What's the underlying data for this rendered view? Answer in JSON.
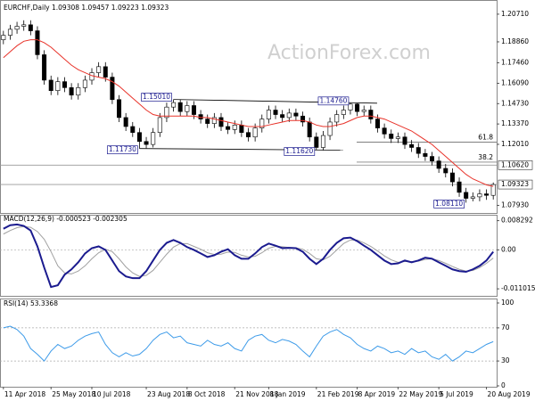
{
  "header": "EURCHF,Daily  1.09308 1.09457 1.09223 1.09323",
  "watermark": "ActionForex.com",
  "chart_data": [
    {
      "type": "candlestick",
      "categories": [
        "11 Apr 2018",
        null,
        null,
        null,
        null,
        null,
        null,
        "25 May 2018",
        null,
        null,
        null,
        null,
        null,
        "10 Jul 2018",
        null,
        null,
        null,
        null,
        null,
        null,
        null,
        "23 Aug 2018",
        null,
        null,
        null,
        null,
        null,
        "8 Oct 2018",
        null,
        null,
        null,
        null,
        null,
        null,
        "21 Nov 2018",
        null,
        null,
        null,
        null,
        "8 Jan 2019",
        null,
        null,
        null,
        null,
        null,
        null,
        "21 Feb 2019",
        null,
        null,
        null,
        null,
        null,
        "8 Apr 2019",
        null,
        null,
        null,
        null,
        null,
        "22 May 2019",
        null,
        null,
        null,
        null,
        null,
        "5 Jul 2019",
        null,
        null,
        null,
        null,
        null,
        null,
        "20 Aug 2019",
        null
      ],
      "open": [
        1.19,
        1.193,
        1.197,
        1.199,
        1.2,
        1.196,
        1.18,
        1.163,
        1.156,
        1.162,
        1.158,
        1.153,
        1.158,
        1.163,
        1.168,
        1.172,
        1.165,
        1.15,
        1.138,
        1.132,
        1.128,
        1.122,
        1.12,
        1.128,
        1.138,
        1.145,
        1.148,
        1.142,
        1.146,
        1.14,
        1.137,
        1.134,
        1.138,
        1.132,
        1.13,
        1.133,
        1.128,
        1.125,
        1.131,
        1.137,
        1.143,
        1.14,
        1.138,
        1.141,
        1.139,
        1.135,
        1.125,
        1.118,
        1.126,
        1.135,
        1.14,
        1.143,
        1.147,
        1.142,
        1.143,
        1.137,
        1.131,
        1.127,
        1.124,
        1.125,
        1.12,
        1.118,
        1.114,
        1.112,
        1.109,
        1.104,
        1.101,
        1.095,
        1.088,
        1.084,
        1.085,
        1.087,
        1.086
      ],
      "high": [
        1.196,
        1.2,
        1.202,
        1.203,
        1.203,
        1.199,
        1.183,
        1.166,
        1.165,
        1.165,
        1.161,
        1.161,
        1.166,
        1.171,
        1.175,
        1.175,
        1.168,
        1.153,
        1.141,
        1.135,
        1.131,
        1.125,
        1.131,
        1.141,
        1.148,
        1.1501,
        1.15,
        1.149,
        1.149,
        1.143,
        1.14,
        1.141,
        1.141,
        1.135,
        1.136,
        1.136,
        1.131,
        1.134,
        1.14,
        1.146,
        1.146,
        1.143,
        1.144,
        1.144,
        1.142,
        1.138,
        1.128,
        1.129,
        1.138,
        1.143,
        1.146,
        1.1476,
        1.1475,
        1.146,
        1.146,
        1.14,
        1.134,
        1.13,
        1.128,
        1.128,
        1.123,
        1.121,
        1.117,
        1.115,
        1.112,
        1.107,
        1.104,
        1.098,
        1.091,
        1.088,
        1.09,
        1.09,
        1.0946
      ],
      "low": [
        1.187,
        1.19,
        1.194,
        1.196,
        1.193,
        1.177,
        1.16,
        1.153,
        1.153,
        1.155,
        1.15,
        1.15,
        1.155,
        1.16,
        1.165,
        1.162,
        1.147,
        1.135,
        1.129,
        1.125,
        1.1173,
        1.1175,
        1.118,
        1.125,
        1.135,
        1.142,
        1.139,
        1.139,
        1.137,
        1.134,
        1.131,
        1.131,
        1.129,
        1.127,
        1.127,
        1.125,
        1.122,
        1.122,
        1.128,
        1.134,
        1.137,
        1.135,
        1.135,
        1.136,
        1.132,
        1.122,
        1.1162,
        1.116,
        1.123,
        1.132,
        1.137,
        1.14,
        1.139,
        1.139,
        1.134,
        1.128,
        1.124,
        1.121,
        1.121,
        1.117,
        1.115,
        1.111,
        1.109,
        1.106,
        1.101,
        1.098,
        1.092,
        1.085,
        1.0811,
        1.082,
        1.082,
        1.083,
        1.0832
      ],
      "close": [
        1.193,
        1.197,
        1.199,
        1.2,
        1.196,
        1.18,
        1.163,
        1.156,
        1.162,
        1.158,
        1.153,
        1.158,
        1.163,
        1.168,
        1.172,
        1.165,
        1.15,
        1.138,
        1.132,
        1.128,
        1.122,
        1.12,
        1.128,
        1.138,
        1.145,
        1.148,
        1.142,
        1.146,
        1.14,
        1.137,
        1.134,
        1.138,
        1.132,
        1.13,
        1.133,
        1.128,
        1.125,
        1.131,
        1.137,
        1.143,
        1.14,
        1.138,
        1.141,
        1.139,
        1.135,
        1.125,
        1.118,
        1.126,
        1.135,
        1.14,
        1.143,
        1.147,
        1.142,
        1.143,
        1.137,
        1.131,
        1.127,
        1.124,
        1.125,
        1.12,
        1.118,
        1.114,
        1.112,
        1.109,
        1.104,
        1.101,
        1.095,
        1.088,
        1.084,
        1.085,
        1.087,
        1.086,
        1.09323
      ],
      "sma": {
        "color": "#e8332a",
        "values": [
          1.178,
          1.182,
          1.186,
          1.189,
          1.19,
          1.19,
          1.188,
          1.185,
          1.181,
          1.177,
          1.173,
          1.17,
          1.168,
          1.166,
          1.165,
          1.164,
          1.162,
          1.159,
          1.155,
          1.151,
          1.147,
          1.143,
          1.14,
          1.139,
          1.139,
          1.139,
          1.139,
          1.139,
          1.139,
          1.138,
          1.138,
          1.137,
          1.136,
          1.135,
          1.134,
          1.133,
          1.132,
          1.132,
          1.132,
          1.133,
          1.134,
          1.135,
          1.136,
          1.136,
          1.136,
          1.135,
          1.133,
          1.132,
          1.132,
          1.133,
          1.134,
          1.136,
          1.138,
          1.139,
          1.139,
          1.138,
          1.137,
          1.135,
          1.133,
          1.131,
          1.129,
          1.126,
          1.123,
          1.12,
          1.116,
          1.112,
          1.108,
          1.104,
          1.1,
          1.097,
          1.095,
          1.093,
          1.092
        ]
      },
      "color": "#000000",
      "ylim": [
        1.076,
        1.213
      ],
      "yticks": [
        {
          "value": 1.2071,
          "label": "1.20710"
        },
        {
          "value": 1.1886,
          "label": "1.18860"
        },
        {
          "value": 1.1746,
          "label": "1.17460"
        },
        {
          "value": 1.1609,
          "label": "1.16090"
        },
        {
          "value": 1.1473,
          "label": "1.14730"
        },
        {
          "value": 1.1337,
          "label": "1.13370"
        },
        {
          "value": 1.1201,
          "label": "1.12010"
        },
        {
          "value": 1.0793,
          "label": "1.07930"
        }
      ],
      "levels": [
        {
          "value": 1.1062,
          "label": "1.10620"
        },
        {
          "value": 1.09323,
          "label": "1.09323"
        }
      ],
      "annotations": [
        {
          "value": 1.1501,
          "label": "1.15010",
          "kind": "high"
        },
        {
          "value": 1.1476,
          "label": "1.14760",
          "kind": "high"
        },
        {
          "value": 1.1173,
          "label": "1.11730",
          "kind": "low"
        },
        {
          "value": 1.1162,
          "label": "1.11620",
          "kind": "low"
        },
        {
          "value": 1.0811,
          "label": "1.08110",
          "kind": "low"
        }
      ],
      "fib_levels": [
        {
          "ratio": 61.8,
          "price": 1.1215
        },
        {
          "ratio": 38.2,
          "price": 1.1082
        }
      ]
    },
    {
      "type": "line",
      "title": "MACD(12,26,9) -0.000523 -0.002305",
      "series": [
        {
          "color": "#1b1b8f",
          "width": 2,
          "values": [
            0.006,
            0.007,
            0.0072,
            0.0068,
            0.0055,
            0.001,
            -0.005,
            -0.0105,
            -0.01,
            -0.007,
            -0.0055,
            -0.0035,
            -0.001,
            0.0005,
            0.001,
            0,
            -0.003,
            -0.006,
            -0.0075,
            -0.008,
            -0.008,
            -0.006,
            -0.003,
            0,
            0.002,
            0.0028,
            0.002,
            0.0008,
            0,
            -0.001,
            -0.002,
            -0.0015,
            -0.0005,
            0.0002,
            -0.0015,
            -0.0025,
            -0.0025,
            -0.001,
            0.0008,
            0.0018,
            0.0012,
            0.0005,
            0.0006,
            0.0005,
            -0.0005,
            -0.0025,
            -0.004,
            -0.0025,
            0,
            0.002,
            0.0033,
            0.0035,
            0.0025,
            0.0012,
            0,
            -0.0015,
            -0.003,
            -0.004,
            -0.0038,
            -0.003,
            -0.0035,
            -0.003,
            -0.0022,
            -0.0025,
            -0.0035,
            -0.0045,
            -0.0055,
            -0.006,
            -0.0062,
            -0.0055,
            -0.0045,
            -0.003,
            -0.000523
          ]
        },
        {
          "color": "#a0a0a0",
          "width": 1,
          "values": [
            0.0045,
            0.0055,
            0.0063,
            0.0066,
            0.0064,
            0.0052,
            0.003,
            -0.0005,
            -0.0045,
            -0.0065,
            -0.0068,
            -0.006,
            -0.0045,
            -0.0025,
            -0.0008,
            0.0002,
            -0.0005,
            -0.0025,
            -0.0048,
            -0.0065,
            -0.0075,
            -0.0072,
            -0.0058,
            -0.0035,
            -0.0012,
            0.0008,
            0.0018,
            0.0018,
            0.001,
            0.0002,
            -0.0008,
            -0.0013,
            -0.0012,
            -0.0006,
            -0.0007,
            -0.0015,
            -0.002,
            -0.0018,
            -0.0008,
            0.0005,
            0.001,
            0.0009,
            0.0007,
            0.0006,
            0.0002,
            -0.001,
            -0.0025,
            -0.0028,
            -0.0018,
            0,
            0.0018,
            0.0028,
            0.0028,
            0.002,
            0.001,
            -0.0003,
            -0.0017,
            -0.0028,
            -0.0035,
            -0.0033,
            -0.0033,
            -0.0032,
            -0.0027,
            -0.0025,
            -0.003,
            -0.0038,
            -0.0047,
            -0.0055,
            -0.006,
            -0.0058,
            -0.005,
            -0.0038,
            -0.002305
          ]
        }
      ],
      "ylim": [
        -0.0125,
        0.0092
      ],
      "yticks": [
        0.008292,
        {
          "value": 0,
          "label": "0.00"
        },
        -0.011015
      ]
    },
    {
      "type": "line",
      "title": "RSI(14) 53.3368",
      "series": [
        {
          "color": "#3d9be9",
          "width": 1,
          "values": [
            70,
            72,
            68,
            60,
            45,
            38,
            30,
            42,
            50,
            45,
            48,
            55,
            60,
            63,
            65,
            50,
            40,
            35,
            40,
            36,
            38,
            45,
            55,
            62,
            65,
            58,
            60,
            52,
            50,
            48,
            55,
            50,
            48,
            52,
            45,
            42,
            55,
            60,
            62,
            55,
            52,
            56,
            54,
            50,
            42,
            35,
            48,
            60,
            65,
            68,
            62,
            58,
            50,
            45,
            42,
            48,
            45,
            40,
            42,
            38,
            45,
            40,
            42,
            35,
            32,
            38,
            30,
            35,
            42,
            40,
            45,
            50,
            53.3368
          ]
        }
      ],
      "ylim": [
        0,
        100
      ],
      "yticks": [
        100,
        70,
        30,
        0
      ],
      "guides": [
        70,
        30
      ]
    }
  ]
}
